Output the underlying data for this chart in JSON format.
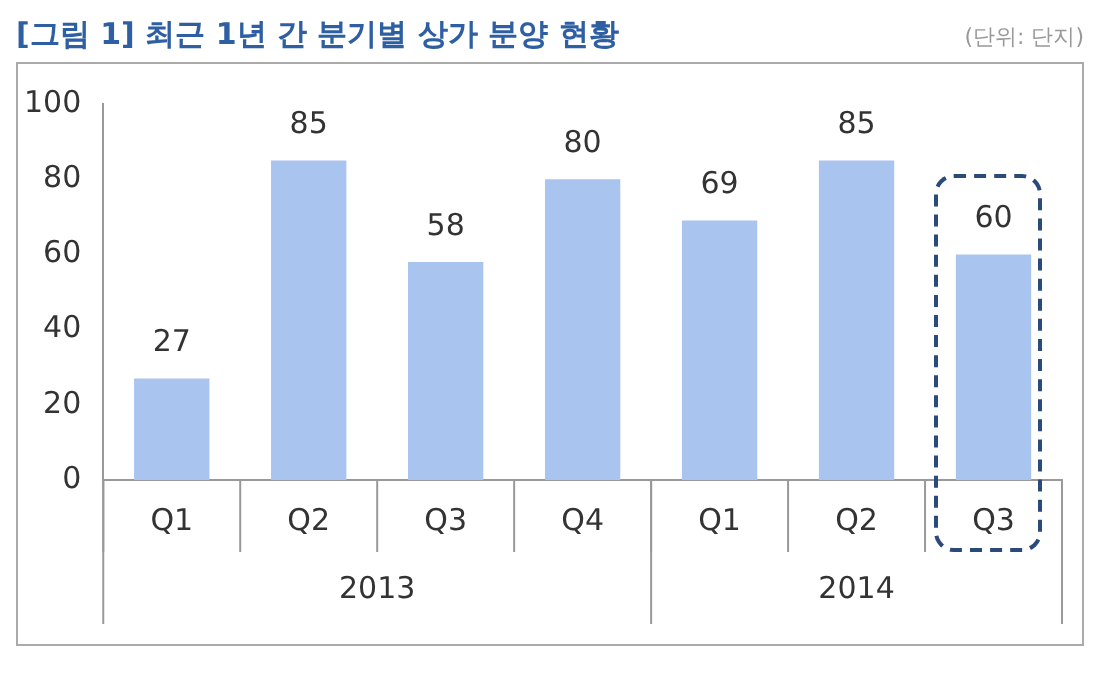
{
  "chart_data": {
    "type": "bar",
    "title": "[그림 1] 최근 1년 간 분기별 상가 분양 현황",
    "subtitle": "(단위: 단지)",
    "categories": [
      "Q1",
      "Q2",
      "Q3",
      "Q4",
      "Q1",
      "Q2",
      "Q3"
    ],
    "values": [
      27,
      85,
      58,
      80,
      69,
      85,
      60
    ],
    "color": "#a9c4ef",
    "ylim": [
      0,
      100
    ],
    "yticks": [
      0,
      20,
      40,
      60,
      80,
      100
    ],
    "grid": false,
    "legend": false,
    "data_labels": true,
    "annotations": [
      "2013",
      "2014"
    ]
  }
}
